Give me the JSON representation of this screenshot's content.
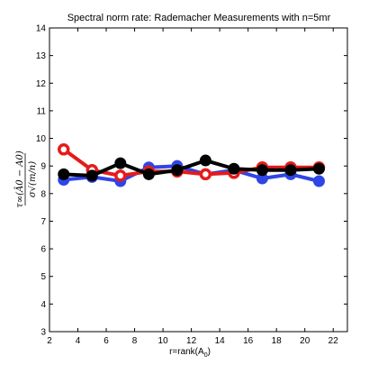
{
  "chart_data": {
    "type": "line",
    "title": "Spectral norm rate: Rademacher Measurements with n=5mr",
    "xlabel": "r=rank(A",
    "xlabel_sub": "0",
    "xlabel_close": ")",
    "ylabel_numerator": "τ∞(Â0 − A0)",
    "ylabel_denominator": "σ√(m/n)",
    "xlim": [
      2,
      23
    ],
    "ylim": [
      3,
      14
    ],
    "xticks": [
      2,
      4,
      6,
      8,
      10,
      12,
      14,
      16,
      18,
      20,
      22
    ],
    "yticks": [
      3,
      4,
      5,
      6,
      7,
      8,
      9,
      10,
      11,
      12,
      13,
      14
    ],
    "grid": false,
    "x": [
      3,
      5,
      7,
      9,
      11,
      13,
      15,
      17,
      19,
      21
    ],
    "series": [
      {
        "color": "#2f45e6",
        "marker": "filled",
        "values": [
          8.5,
          8.6,
          8.45,
          8.95,
          9.0,
          8.7,
          8.85,
          8.55,
          8.7,
          8.45
        ]
      },
      {
        "color": "#e61b1b",
        "marker": "open",
        "values": [
          9.6,
          8.85,
          8.65,
          8.8,
          8.8,
          8.7,
          8.75,
          8.95,
          8.95,
          8.95
        ]
      },
      {
        "color": "#000000",
        "marker": "filled",
        "values": [
          8.7,
          8.65,
          9.1,
          8.7,
          8.85,
          9.2,
          8.9,
          8.85,
          8.85,
          8.9
        ]
      }
    ]
  }
}
